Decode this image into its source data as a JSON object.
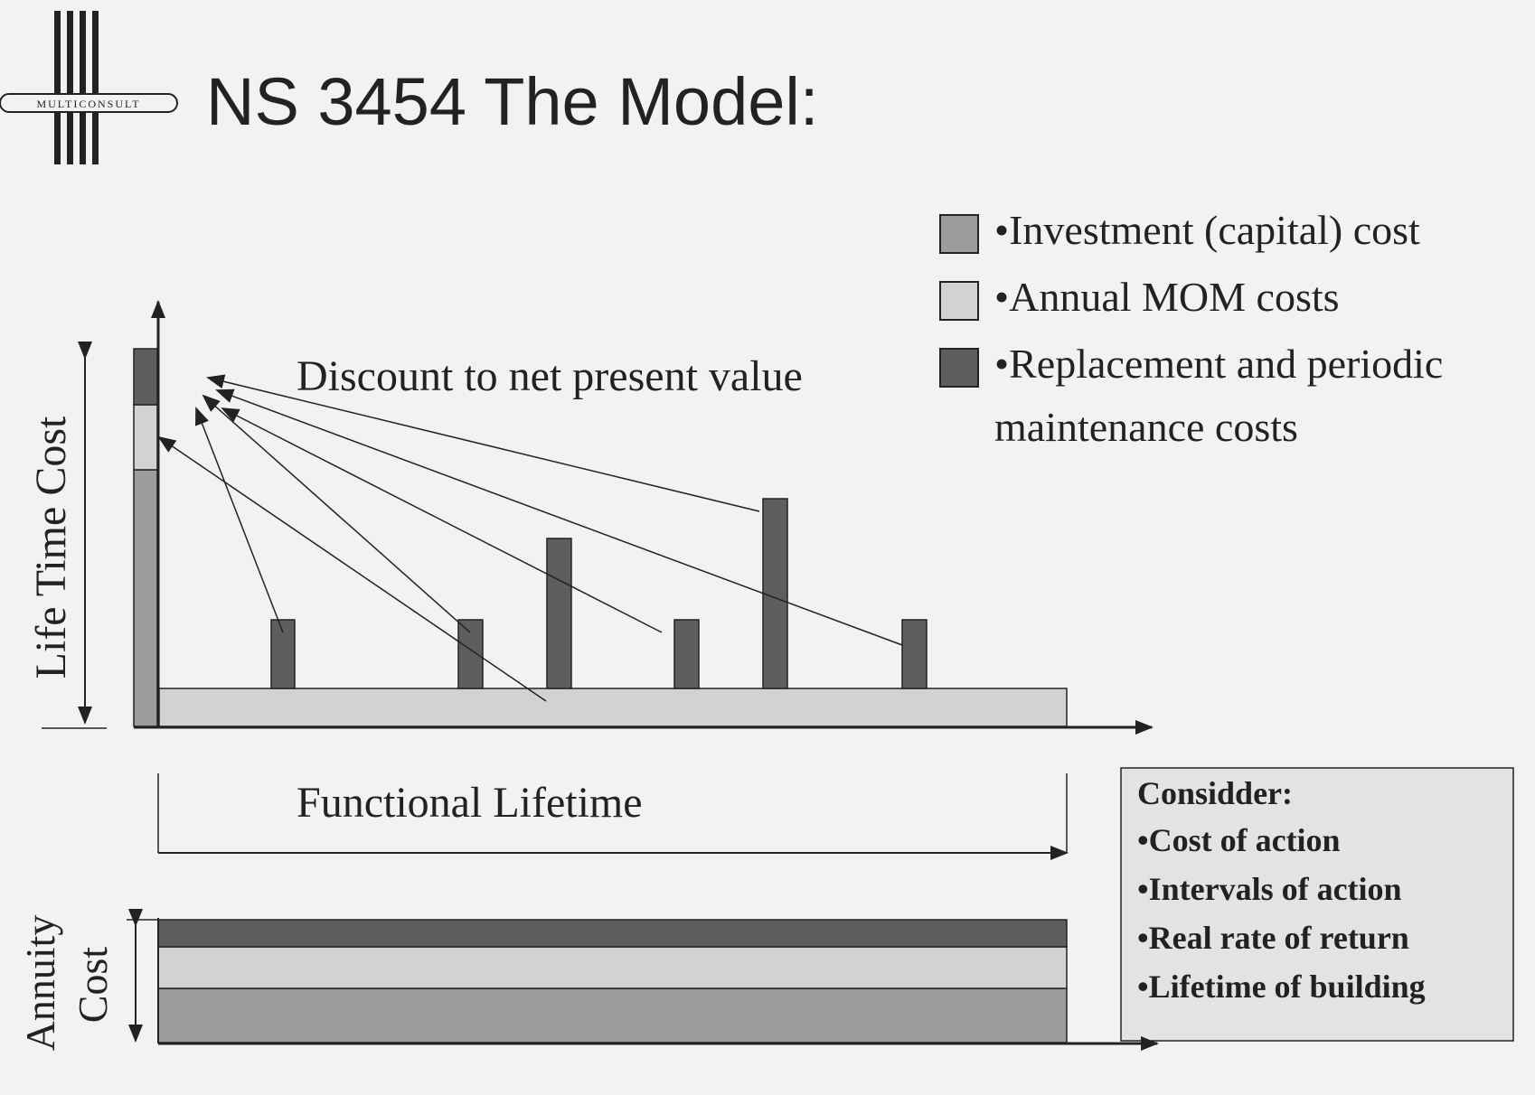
{
  "title": "NS 3454 The Model:",
  "logo": {
    "text": "MULTICONSULT"
  },
  "colors": {
    "investment": "#9c9c9c",
    "mom": "#d2d2d2",
    "replacement": "#5e5e5e",
    "outline": "#222222",
    "background": "#f2f2f2"
  },
  "legend": [
    {
      "key": "investment",
      "lines": [
        "•Investment (capital) cost"
      ]
    },
    {
      "key": "mom",
      "lines": [
        "•Annual MOM costs"
      ]
    },
    {
      "key": "replacement",
      "lines": [
        "•Replacement and periodic",
        "maintenance costs"
      ]
    }
  ],
  "labels": {
    "discount": "Discount to net present value",
    "life_time_cost": "Life Time Cost",
    "functional_lifetime": "Functional Lifetime",
    "annuity_line1": "Annuity",
    "annuity_line2": "Cost"
  },
  "consider": {
    "heading": "Considder:",
    "items": [
      "•Cost of action",
      "•Intervals of action",
      "•Real rate of return",
      "•Lifetime of building"
    ]
  }
}
